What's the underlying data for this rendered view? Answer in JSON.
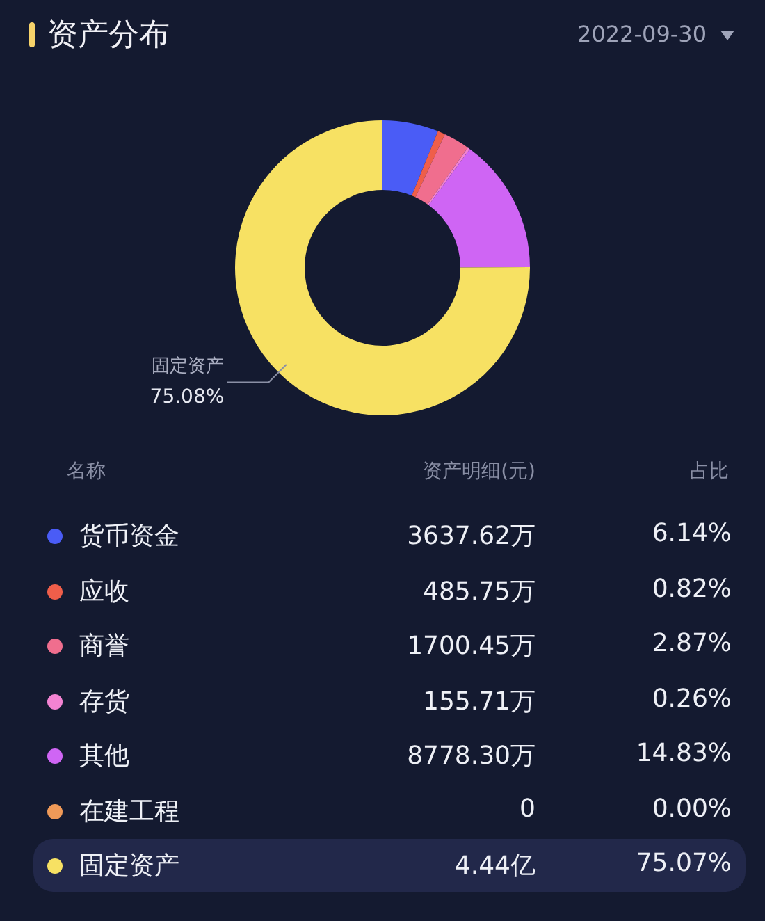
{
  "chart_data": {
    "type": "donut",
    "title": "资产分布",
    "subtitle": "2022-09-30",
    "categories": [
      "货币资金",
      "应收",
      "商誉",
      "存货",
      "其他",
      "在建工程",
      "固定资产"
    ],
    "values": [
      6.14,
      0.82,
      2.87,
      0.26,
      14.83,
      0.0,
      75.07
    ],
    "colors": [
      "#4a5cf6",
      "#ef5e4a",
      "#f06e8e",
      "#f383d2",
      "#cf65f4",
      "#f09a58",
      "#f7e163"
    ],
    "value_labels": [
      "6.14%",
      "0.82%",
      "2.87%",
      "0.26%",
      "14.83%",
      "0.00%",
      "75.07%"
    ],
    "legend": "bottom",
    "annotations": [
      "名称",
      "资产明细(元)",
      "占比",
      "75.08%",
      "3637.62万",
      "485.75万",
      "1700.45万",
      "155.71万",
      "8778.30万",
      "0",
      "4.44亿"
    ]
  }
}
